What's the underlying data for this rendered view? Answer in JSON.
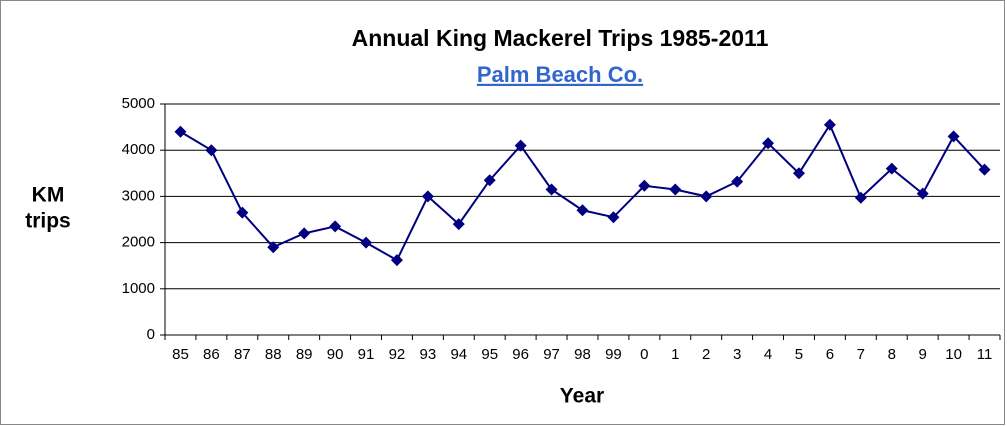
{
  "chart_data": {
    "type": "line",
    "title": "Annual King Mackerel Trips 1985-2011",
    "subtitle": "Palm Beach Co.",
    "ylabel": [
      "KM",
      "trips"
    ],
    "xlabel": "Year",
    "categories": [
      "85",
      "86",
      "87",
      "88",
      "89",
      "90",
      "91",
      "92",
      "93",
      "94",
      "95",
      "96",
      "97",
      "98",
      "99",
      "0",
      "1",
      "2",
      "3",
      "4",
      "5",
      "6",
      "7",
      "8",
      "9",
      "10",
      "11"
    ],
    "series": [
      {
        "name": "KM trips",
        "color": "#000080",
        "values": [
          4400,
          4000,
          2650,
          1900,
          2200,
          2350,
          2000,
          1620,
          3000,
          2400,
          3350,
          4100,
          3150,
          2700,
          2550,
          3230,
          3150,
          3000,
          3320,
          4150,
          3500,
          4550,
          2970,
          3600,
          3060,
          4300,
          3580
        ]
      }
    ],
    "ylim": [
      0,
      5000
    ],
    "yticks": [
      0,
      1000,
      2000,
      3000,
      4000,
      5000
    ],
    "grid": true
  }
}
